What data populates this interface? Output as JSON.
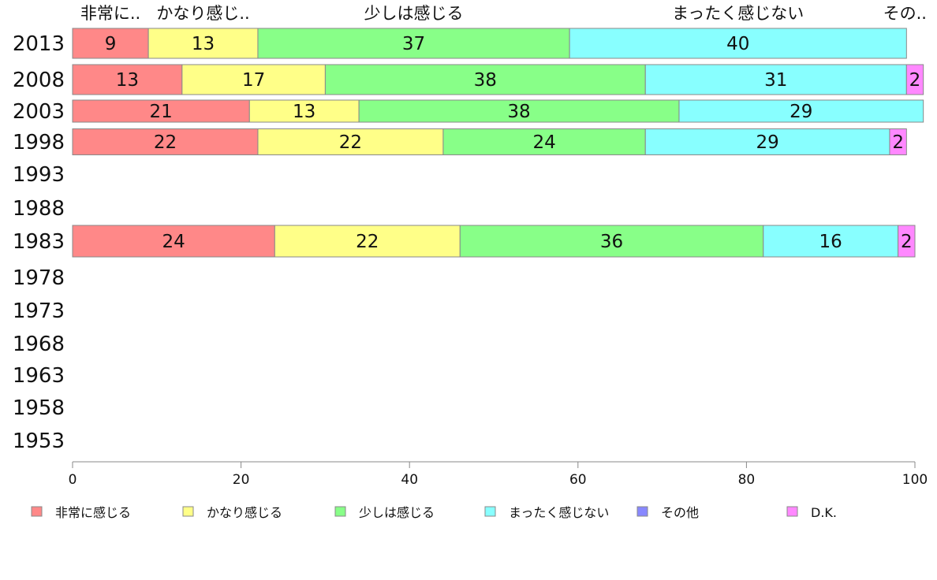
{
  "chart_data": {
    "type": "bar",
    "orientation": "horizontal",
    "stacked": true,
    "categories": [
      "2013",
      "2008",
      "2003",
      "1998",
      "1993",
      "1988",
      "1983",
      "1978",
      "1973",
      "1968",
      "1963",
      "1958",
      "1953"
    ],
    "series": [
      {
        "name": "非常に感じる",
        "short_label": "非常に..",
        "color": "#ff8888",
        "values": [
          9,
          13,
          21,
          22,
          null,
          null,
          24,
          null,
          null,
          null,
          null,
          null,
          null
        ]
      },
      {
        "name": "かなり感じる",
        "short_label": "かなり感じ..",
        "color": "#ffff88",
        "values": [
          13,
          17,
          13,
          22,
          null,
          null,
          22,
          null,
          null,
          null,
          null,
          null,
          null
        ]
      },
      {
        "name": "少しは感じる",
        "short_label": "少しは感じる",
        "color": "#88ff88",
        "values": [
          37,
          38,
          38,
          24,
          null,
          null,
          36,
          null,
          null,
          null,
          null,
          null,
          null
        ]
      },
      {
        "name": "まったく感じない",
        "short_label": "まったく感じない",
        "color": "#88ffff",
        "values": [
          40,
          31,
          29,
          29,
          null,
          null,
          16,
          null,
          null,
          null,
          null,
          null,
          null
        ]
      },
      {
        "name": "その他",
        "short_label": "その..",
        "color": "#8888ff",
        "values": [
          0,
          0,
          0,
          0,
          null,
          null,
          0,
          null,
          null,
          null,
          null,
          null,
          null
        ]
      },
      {
        "name": "D.K.",
        "short_label": "D.K.",
        "color": "#ff88ff",
        "values": [
          0,
          2,
          0,
          2,
          null,
          null,
          2,
          null,
          null,
          null,
          null,
          null,
          null
        ]
      }
    ],
    "xlim": [
      0,
      100
    ],
    "xticks": [
      0,
      20,
      40,
      60,
      80,
      100
    ],
    "legend_position": "bottom",
    "grid": false
  }
}
